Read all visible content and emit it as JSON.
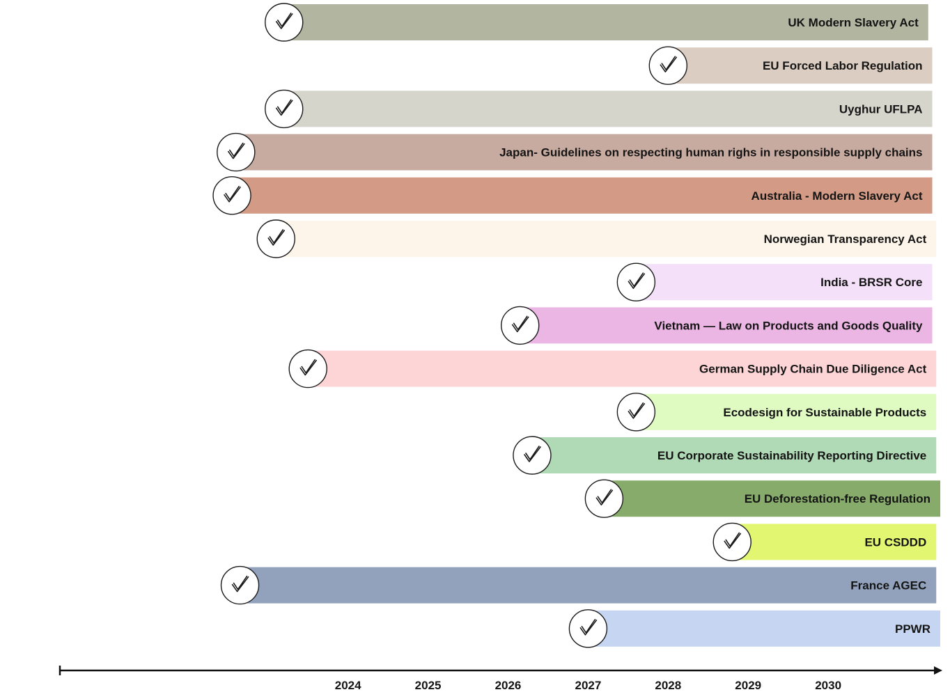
{
  "chart_data": {
    "type": "timeline",
    "title": "",
    "xlabel": "",
    "ylabel": "",
    "xlim": [
      2020.4,
      2031.4
    ],
    "ticks": [
      "2024",
      "2025",
      "2026",
      "2027",
      "2028",
      "2029",
      "2030"
    ],
    "axis_color": "#111111",
    "series": [
      {
        "name": "UK Modern Slavery Act",
        "start": 2023.2,
        "end": 2031.25,
        "color": "#b2b5a0"
      },
      {
        "name": "EU Forced Labor Regulation",
        "start": 2028.0,
        "end": 2031.3,
        "color": "#dbcdc1"
      },
      {
        "name": "Uyghur UFLPA",
        "start": 2023.2,
        "end": 2031.3,
        "color": "#d5d5cc"
      },
      {
        "name": "Japan- Guidelines on respecting human righs in responsible supply chains",
        "start": 2022.6,
        "end": 2031.3,
        "color": "#c8aba0"
      },
      {
        "name": "Australia - Modern Slavery Act",
        "start": 2022.55,
        "end": 2031.3,
        "color": "#d39b86"
      },
      {
        "name": "Norwegian Transparency Act",
        "start": 2023.1,
        "end": 2031.35,
        "color": "#fdf5e9"
      },
      {
        "name": "India - BRSR Core",
        "start": 2027.6,
        "end": 2031.3,
        "color": "#f4e0f8"
      },
      {
        "name": "Vietnam — Law on Products and Goods Quality",
        "start": 2026.15,
        "end": 2031.3,
        "color": "#ecb6e4"
      },
      {
        "name": "German Supply Chain Due Diligence Act",
        "start": 2023.5,
        "end": 2031.35,
        "color": "#fdd5d7"
      },
      {
        "name": "Ecodesign for Sustainable Products",
        "start": 2027.6,
        "end": 2031.35,
        "color": "#e0fbc2"
      },
      {
        "name": "EU Corporate Sustainability Reporting Directive",
        "start": 2026.3,
        "end": 2031.35,
        "color": "#b0d9b5"
      },
      {
        "name": "EU Deforestation-free Regulation",
        "start": 2027.2,
        "end": 2031.4,
        "color": "#86ab6a"
      },
      {
        "name": "EU CSDDD",
        "start": 2028.8,
        "end": 2031.35,
        "color": "#e3f671"
      },
      {
        "name": "France AGEC",
        "start": 2022.65,
        "end": 2031.35,
        "color": "#93a2bc"
      },
      {
        "name": "PPWR",
        "start": 2027.0,
        "end": 2031.4,
        "color": "#c6d6f2"
      }
    ]
  }
}
